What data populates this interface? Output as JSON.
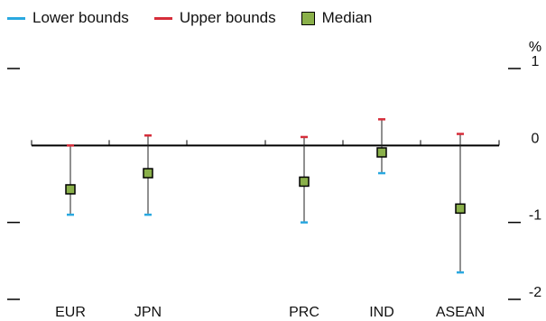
{
  "legend": {
    "lower_label": "Lower bounds",
    "upper_label": "Upper bounds",
    "median_label": "Median"
  },
  "colors": {
    "lower": "#29a8e0",
    "upper": "#d62d3a",
    "median_fill": "#8ab04a",
    "axis": "#000000"
  },
  "chart_data": {
    "type": "scatter",
    "title": "",
    "xlabel": "",
    "ylabel": "%",
    "ylim": [
      -2,
      1
    ],
    "yticks": [
      1,
      0,
      -1,
      -2
    ],
    "categories": [
      "EUR",
      "JPN",
      "PRC",
      "IND",
      "ASEAN"
    ],
    "series": [
      {
        "name": "Lower bounds",
        "values": [
          -0.9,
          -0.9,
          -1.0,
          -0.36,
          -1.65
        ]
      },
      {
        "name": "Upper bounds",
        "values": [
          0.0,
          0.13,
          0.11,
          0.34,
          0.15
        ]
      },
      {
        "name": "Median",
        "values": [
          -0.57,
          -0.36,
          -0.47,
          -0.09,
          -0.82
        ]
      }
    ]
  }
}
